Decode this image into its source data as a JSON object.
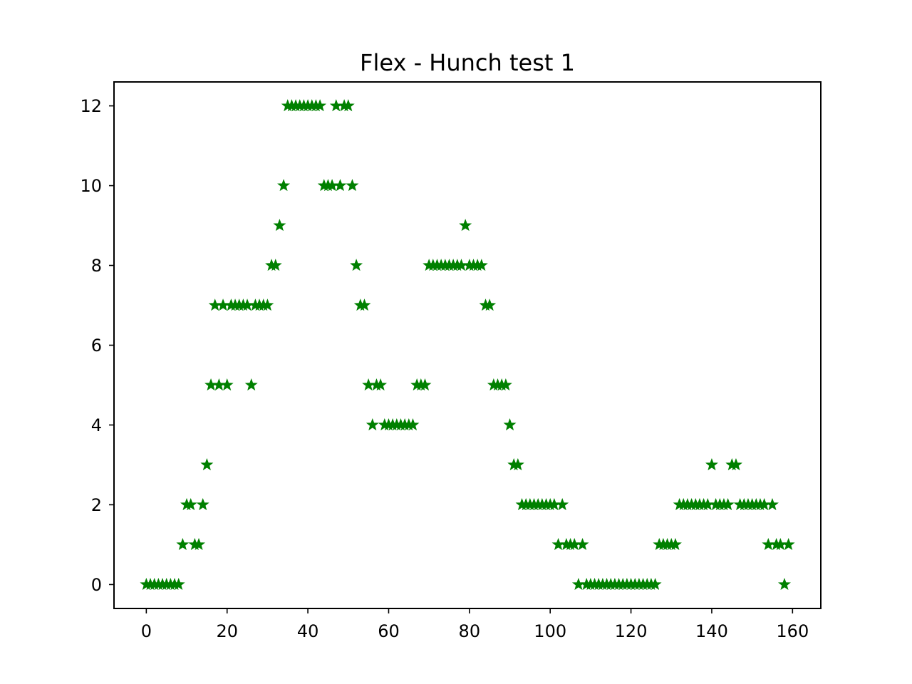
{
  "chart_data": {
    "type": "scatter",
    "title": "Flex - Hunch test 1",
    "xlabel": "",
    "ylabel": "",
    "xlim": [
      -8,
      167
    ],
    "ylim": [
      -0.6,
      12.6
    ],
    "x_ticks": [
      0,
      20,
      40,
      60,
      80,
      100,
      120,
      140,
      160
    ],
    "y_ticks": [
      0,
      2,
      4,
      6,
      8,
      10,
      12
    ],
    "grid": false,
    "marker": "star",
    "marker_color": "#008000",
    "series": [
      {
        "x": [
          0,
          1,
          2,
          3,
          4,
          5,
          6,
          7,
          8,
          9,
          10,
          11,
          12,
          13,
          14,
          15,
          16,
          17,
          18,
          19,
          20,
          21,
          22,
          23,
          24,
          25,
          26,
          27,
          28,
          29,
          30,
          31,
          32,
          33,
          34,
          35,
          36,
          37,
          38,
          39,
          40,
          41,
          42,
          43,
          44,
          45,
          46,
          47,
          48,
          49,
          50,
          51,
          52,
          53,
          54,
          55,
          56,
          57,
          58,
          59,
          60,
          61,
          62,
          63,
          64,
          65,
          66,
          67,
          68,
          69,
          70,
          71,
          72,
          73,
          74,
          75,
          76,
          77,
          78,
          79,
          80,
          81,
          82,
          83,
          84,
          85,
          86,
          87,
          88,
          89,
          90,
          91,
          92,
          93,
          94,
          95,
          96,
          97,
          98,
          99,
          100,
          101,
          102,
          103,
          104,
          105,
          106,
          107,
          108,
          109,
          110,
          111,
          112,
          113,
          114,
          115,
          116,
          117,
          118,
          119,
          120,
          121,
          122,
          123,
          124,
          125,
          126,
          127,
          128,
          129,
          130,
          131,
          132,
          133,
          134,
          135,
          136,
          137,
          138,
          139,
          140,
          141,
          142,
          143,
          144,
          145,
          146,
          147,
          148,
          149,
          150,
          151,
          152,
          153,
          154,
          155,
          156,
          157,
          158,
          159
        ],
        "y": [
          0,
          0,
          0,
          0,
          0,
          0,
          0,
          0,
          0,
          1,
          2,
          2,
          1,
          1,
          2,
          3,
          5,
          7,
          5,
          7,
          5,
          7,
          7,
          7,
          7,
          7,
          5,
          7,
          7,
          7,
          7,
          8,
          8,
          9,
          10,
          12,
          12,
          12,
          12,
          12,
          12,
          12,
          12,
          12,
          10,
          10,
          10,
          12,
          10,
          12,
          12,
          10,
          8,
          7,
          7,
          5,
          4,
          5,
          5,
          4,
          4,
          4,
          4,
          4,
          4,
          4,
          4,
          5,
          5,
          5,
          8,
          8,
          8,
          8,
          8,
          8,
          8,
          8,
          8,
          9,
          8,
          8,
          8,
          8,
          7,
          7,
          5,
          5,
          5,
          5,
          4,
          3,
          3,
          2,
          2,
          2,
          2,
          2,
          2,
          2,
          2,
          2,
          1,
          2,
          1,
          1,
          1,
          0,
          1,
          0,
          0,
          0,
          0,
          0,
          0,
          0,
          0,
          0,
          0,
          0,
          0,
          0,
          0,
          0,
          0,
          0,
          0,
          1,
          1,
          1,
          1,
          1,
          2,
          2,
          2,
          2,
          2,
          2,
          2,
          2,
          3,
          2,
          2,
          2,
          2,
          3,
          3,
          2,
          2,
          2,
          2,
          2,
          2,
          2,
          1,
          2,
          1,
          1,
          0,
          1
        ]
      }
    ]
  }
}
